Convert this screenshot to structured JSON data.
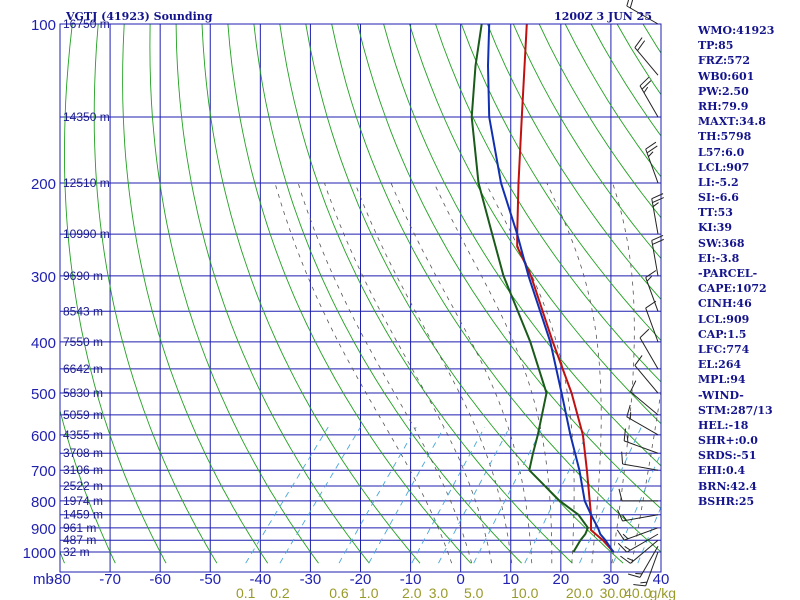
{
  "header": {
    "station": "VGTJ (41923) Sounding",
    "time": "1200Z  3 JUN 25"
  },
  "colors": {
    "frame": "#1f1fb0",
    "dry_adiabat": "#22a022",
    "moist_adiabat": "#555555",
    "mixing_ratio": "#4aa8d8",
    "temperature": "#1030b0",
    "dewpoint": "#1a5a1a",
    "parcel": "#c01010",
    "wind_barb": "#222222"
  },
  "stats": [
    "WMO:41923",
    "TP:85",
    "FRZ:572",
    "WB0:601",
    "PW:2.50",
    "RH:79.9",
    "MAXT:34.8",
    "TH:5798",
    "L57:6.0",
    "LCL:907",
    "LI:-5.2",
    "SI:-6.6",
    "TT:53",
    "KI:39",
    "SW:368",
    "EI:-3.8",
    "-PARCEL-",
    "CAPE:1072",
    "CINH:46",
    "LCL:909",
    "CAP:1.5",
    "LFC:774",
    "EL:264",
    "MPL:94",
    "-WIND-",
    "STM:287/13",
    "HEL:-18",
    "SHR+:0.0",
    "SRDS:-51",
    "EHI:0.4",
    "BRN:42.4",
    "BSHR:25"
  ],
  "chart_data": {
    "type": "line",
    "title": "VGTJ (41923) Sounding",
    "axis_unit_pressure": "mb",
    "pressure_levels": [
      {
        "p": 100,
        "label": "100"
      },
      {
        "p": 200,
        "label": "200"
      },
      {
        "p": 300,
        "label": "300"
      },
      {
        "p": 400,
        "label": "400"
      },
      {
        "p": 500,
        "label": "500"
      },
      {
        "p": 600,
        "label": "600"
      },
      {
        "p": 700,
        "label": "700"
      },
      {
        "p": 800,
        "label": "800"
      },
      {
        "p": 900,
        "label": "900"
      },
      {
        "p": 1000,
        "label": "1000"
      }
    ],
    "height_labels": [
      {
        "p": 100,
        "label": "16750 m"
      },
      {
        "p": 150,
        "label": "14350 m"
      },
      {
        "p": 200,
        "label": "12510 m"
      },
      {
        "p": 250,
        "label": "10990 m"
      },
      {
        "p": 300,
        "label": "9690 m"
      },
      {
        "p": 350,
        "label": "8543 m"
      },
      {
        "p": 400,
        "label": "7550 m"
      },
      {
        "p": 450,
        "label": "6642 m"
      },
      {
        "p": 500,
        "label": "5830 m"
      },
      {
        "p": 550,
        "label": "5059 m"
      },
      {
        "p": 600,
        "label": "4355 m"
      },
      {
        "p": 650,
        "label": "3708 m"
      },
      {
        "p": 700,
        "label": "3106 m"
      },
      {
        "p": 750,
        "label": "2522 m"
      },
      {
        "p": 800,
        "label": "1974 m"
      },
      {
        "p": 850,
        "label": "1459 m"
      },
      {
        "p": 900,
        "label": "961 m"
      },
      {
        "p": 950,
        "label": "487 m"
      },
      {
        "p": 1000,
        "label": "32 m"
      }
    ],
    "temperature_ticks": [
      {
        "t": -80,
        "label": "-80"
      },
      {
        "t": -70,
        "label": "-70"
      },
      {
        "t": -60,
        "label": "-60"
      },
      {
        "t": -50,
        "label": "-50"
      },
      {
        "t": -40,
        "label": "-40"
      },
      {
        "t": -30,
        "label": "-30"
      },
      {
        "t": -20,
        "label": "-20"
      },
      {
        "t": -10,
        "label": "-10"
      },
      {
        "t": 0,
        "label": "0"
      },
      {
        "t": 10,
        "label": "10"
      },
      {
        "t": 20,
        "label": "20"
      },
      {
        "t": 30,
        "label": "30"
      },
      {
        "t": 40,
        "label": "40"
      }
    ],
    "mixing_ratio_labels": [
      "0.1",
      "0.2",
      "0.6",
      "1.0",
      "2.0",
      "3.0",
      "5.0",
      "10.0",
      "20.0",
      "30.0",
      "40.0"
    ],
    "mixing_ratio_unit": "g/kg",
    "mixing_ratio_values": [
      0.1,
      0.2,
      0.6,
      1.0,
      2.0,
      3.0,
      5.0,
      10.0,
      20.0,
      30.0,
      40.0
    ],
    "pressure_range_mb": [
      100,
      1000
    ],
    "temperature_range_at_1000mb_c": [
      -80,
      40
    ],
    "series": [
      {
        "id": "temperature",
        "points": [
          {
            "p": 1000,
            "t": 30.5
          },
          {
            "p": 950,
            "t": 27.0
          },
          {
            "p": 925,
            "t": 25.0
          },
          {
            "p": 900,
            "t": 23.5
          },
          {
            "p": 850,
            "t": 20.0
          },
          {
            "p": 800,
            "t": 16.5
          },
          {
            "p": 700,
            "t": 10.5
          },
          {
            "p": 600,
            "t": 3.0
          },
          {
            "p": 500,
            "t": -5.5
          },
          {
            "p": 400,
            "t": -16.0
          },
          {
            "p": 300,
            "t": -31.0
          },
          {
            "p": 250,
            "t": -40.0
          },
          {
            "p": 200,
            "t": -51.5
          },
          {
            "p": 150,
            "t": -64.5
          },
          {
            "p": 120,
            "t": -73.0
          },
          {
            "p": 100,
            "t": -79.5
          }
        ]
      },
      {
        "id": "dewpoint",
        "points": [
          {
            "p": 1000,
            "t": 22.5
          },
          {
            "p": 950,
            "t": 22.0
          },
          {
            "p": 925,
            "t": 22.0
          },
          {
            "p": 900,
            "t": 21.5
          },
          {
            "p": 850,
            "t": 17.5
          },
          {
            "p": 800,
            "t": 11.5
          },
          {
            "p": 700,
            "t": 0.5
          },
          {
            "p": 650,
            "t": -1.5
          },
          {
            "p": 600,
            "t": -3.5
          },
          {
            "p": 500,
            "t": -8.5
          },
          {
            "p": 400,
            "t": -20.0
          },
          {
            "p": 300,
            "t": -36.0
          },
          {
            "p": 250,
            "t": -45.0
          },
          {
            "p": 200,
            "t": -56.0
          },
          {
            "p": 150,
            "t": -68.0
          },
          {
            "p": 120,
            "t": -75.5
          },
          {
            "p": 100,
            "t": -81.0
          }
        ]
      },
      {
        "id": "parcel",
        "points": [
          {
            "p": 1000,
            "t": 30.5
          },
          {
            "p": 950,
            "t": 26.5
          },
          {
            "p": 909,
            "t": 22.5
          },
          {
            "p": 850,
            "t": 20.0
          },
          {
            "p": 800,
            "t": 17.5
          },
          {
            "p": 700,
            "t": 12.0
          },
          {
            "p": 600,
            "t": 5.5
          },
          {
            "p": 500,
            "t": -3.5
          },
          {
            "p": 400,
            "t": -15.5
          },
          {
            "p": 300,
            "t": -30.5
          },
          {
            "p": 264,
            "t": -38.0
          },
          {
            "p": 250,
            "t": -40.0
          },
          {
            "p": 200,
            "t": -48.0
          },
          {
            "p": 150,
            "t": -58.0
          },
          {
            "p": 100,
            "t": -72.0
          }
        ]
      }
    ],
    "wind_profile": [
      {
        "p": 1000,
        "dir": 200,
        "spd": 15
      },
      {
        "p": 975,
        "dir": 210,
        "spd": 15
      },
      {
        "p": 950,
        "dir": 230,
        "spd": 15
      },
      {
        "p": 925,
        "dir": 240,
        "spd": 15
      },
      {
        "p": 900,
        "dir": 250,
        "spd": 15
      },
      {
        "p": 850,
        "dir": 260,
        "spd": 15
      },
      {
        "p": 800,
        "dir": 270,
        "spd": 10
      },
      {
        "p": 700,
        "dir": 280,
        "spd": 10
      },
      {
        "p": 650,
        "dir": 290,
        "spd": 15
      },
      {
        "p": 600,
        "dir": 300,
        "spd": 15
      },
      {
        "p": 550,
        "dir": 310,
        "spd": 10
      },
      {
        "p": 500,
        "dir": 320,
        "spd": 10
      },
      {
        "p": 450,
        "dir": 330,
        "spd": 10
      },
      {
        "p": 400,
        "dir": 340,
        "spd": 10
      },
      {
        "p": 350,
        "dir": 340,
        "spd": 15
      },
      {
        "p": 300,
        "dir": 350,
        "spd": 20
      },
      {
        "p": 250,
        "dir": 350,
        "spd": 25
      },
      {
        "p": 200,
        "dir": 340,
        "spd": 25
      },
      {
        "p": 150,
        "dir": 330,
        "spd": 25
      },
      {
        "p": 125,
        "dir": 320,
        "spd": 20
      },
      {
        "p": 100,
        "dir": 300,
        "spd": 20
      }
    ]
  }
}
